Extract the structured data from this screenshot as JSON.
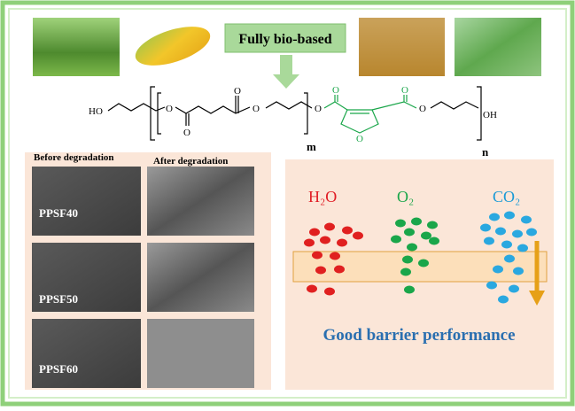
{
  "header": {
    "label": "Fully bio-based"
  },
  "structure": {
    "atoms": [
      "HO",
      "O",
      "O",
      "O",
      "O",
      "O",
      "O",
      "O",
      "O",
      "O",
      "OH"
    ],
    "repeat_inner": "m",
    "repeat_outer": "n"
  },
  "degradation": {
    "before_label": "Before degradation",
    "after_label": "After degradation",
    "samples": [
      "PPSF40",
      "PPSF50",
      "PPSF60"
    ]
  },
  "barrier": {
    "gases": [
      "H₂O",
      "O₂",
      "CO₂"
    ],
    "caption": "Good barrier performance"
  }
}
